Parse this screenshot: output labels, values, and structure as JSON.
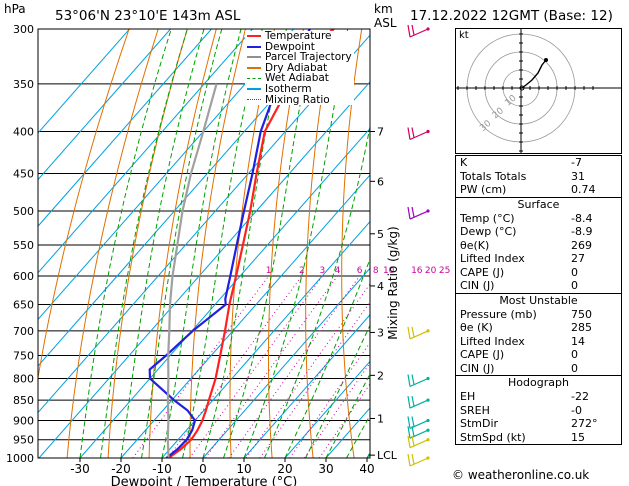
{
  "header": {
    "left_title": "53°06'N  23°10'E  143m  ASL",
    "right_title": "17.12.2022  12GMT  (Base: 12)",
    "hpa_label": "hPa",
    "km_label": "km",
    "asl_label": "ASL"
  },
  "legend": {
    "items": [
      {
        "label": "Temperature",
        "color": "#ff2020"
      },
      {
        "label": "Dewpoint",
        "color": "#2020e0"
      },
      {
        "label": "Parcel Trajectory",
        "color": "#909090"
      },
      {
        "label": "Dry Adiabat",
        "color": "#e07000"
      },
      {
        "label": "Wet Adiabat",
        "color": "#00a000"
      },
      {
        "label": "Isotherm",
        "color": "#00a0e0"
      },
      {
        "label": "Mixing Ratio",
        "color": "#d000a0"
      }
    ]
  },
  "colors": {
    "temperature": "#ff2020",
    "dewpoint": "#2020e0",
    "parcel": "#a0a0a0",
    "dry_adiabat": "#e07000",
    "wet_adiabat": "#00a000",
    "isotherm": "#00a0e0",
    "mixing_ratio": "#d000a0",
    "wind_barb_upper": "#d00060",
    "wind_barb_mid": "#a000c0",
    "wind_barb_low": "#00b0a0",
    "wind_barb_surface": "#d0c000"
  },
  "chart_data": {
    "type": "line",
    "title": "53°06'N  23°10'E  143m  ASL",
    "xlabel": "Dewpoint / Temperature (°C)",
    "ylabel": "hPa",
    "right_ylabel": "Mixing Ratio (g/kg)",
    "xlim": [
      -40,
      40
    ],
    "ylim": [
      1000,
      300
    ],
    "x_ticks": [
      -30,
      -20,
      -10,
      0,
      10,
      20,
      30,
      40
    ],
    "pressure_ticks": [
      300,
      350,
      400,
      450,
      500,
      550,
      600,
      650,
      700,
      750,
      800,
      850,
      900,
      950,
      1000
    ],
    "km_ticks": [
      {
        "label": "7",
        "p": 400
      },
      {
        "label": "6",
        "p": 460
      },
      {
        "label": "5",
        "p": 533
      },
      {
        "label": "4",
        "p": 617
      },
      {
        "label": "3",
        "p": 703
      },
      {
        "label": "2",
        "p": 793
      },
      {
        "label": "1",
        "p": 895
      },
      {
        "label": "LCL",
        "p": 992
      }
    ],
    "mixing_ratio_labels": [
      "1",
      "2",
      "3",
      "4",
      "6",
      "8",
      "10",
      "16",
      "20",
      "25"
    ],
    "mixing_ratio_values": [
      1,
      2,
      3,
      4,
      6,
      8,
      10,
      16,
      20,
      25
    ],
    "grid": true,
    "series": [
      {
        "name": "Temperature",
        "p": [
          1000,
          975,
          950,
          925,
          900,
          875,
          850,
          800,
          750,
          700,
          650,
          600,
          550,
          500,
          450,
          400,
          350,
          300
        ],
        "t": [
          -8.4,
          -7.3,
          -6.8,
          -7.3,
          -8.2,
          -9.5,
          -11,
          -14,
          -17.8,
          -21.9,
          -26.5,
          -31,
          -36,
          -41.5,
          -48,
          -55,
          -59,
          -60.5
        ]
      },
      {
        "name": "Dewpoint",
        "p": [
          1000,
          975,
          950,
          925,
          900,
          875,
          850,
          800,
          780,
          750,
          700,
          650,
          640,
          600,
          550,
          500,
          450,
          400,
          350,
          300
        ],
        "t": [
          -8.9,
          -8.1,
          -7.9,
          -8.6,
          -10,
          -14,
          -19.5,
          -30,
          -32,
          -31,
          -29.8,
          -27.4,
          -28.7,
          -32.4,
          -37.5,
          -43,
          -49,
          -56,
          -62,
          -66
        ]
      },
      {
        "name": "Parcel Trajectory",
        "p": [
          1000,
          950,
          900,
          850,
          800,
          750,
          700,
          650,
          600,
          550,
          500,
          450,
          400,
          350
        ],
        "t": [
          -8.4,
          -12.5,
          -16.5,
          -21,
          -25.5,
          -30.5,
          -35.5,
          -41,
          -46.5,
          -52,
          -58,
          -64,
          -70,
          -77
        ]
      }
    ]
  },
  "hodograph": {
    "label": "kt",
    "ring_labels": [
      "10",
      "20",
      "30"
    ]
  },
  "indices": {
    "top": [
      {
        "label": "K",
        "value": "-7"
      },
      {
        "label": "Totals Totals",
        "value": "31"
      },
      {
        "label": "PW (cm)",
        "value": "0.74"
      }
    ],
    "surface_title": "Surface",
    "surface": [
      {
        "label": "Temp (°C)",
        "value": "-8.4"
      },
      {
        "label": "Dewp (°C)",
        "value": "-8.9"
      },
      {
        "label": "θe(K)",
        "value": "269"
      },
      {
        "label": "Lifted Index",
        "value": "27"
      },
      {
        "label": "CAPE (J)",
        "value": "0"
      },
      {
        "label": "CIN (J)",
        "value": "0"
      }
    ],
    "mu_title": "Most Unstable",
    "most_unstable": [
      {
        "label": "Pressure (mb)",
        "value": "750"
      },
      {
        "label": "θe (K)",
        "value": "285"
      },
      {
        "label": "Lifted Index",
        "value": "14"
      },
      {
        "label": "CAPE (J)",
        "value": "0"
      },
      {
        "label": "CIN (J)",
        "value": "0"
      }
    ],
    "hodo_title": "Hodograph",
    "hodograph": [
      {
        "label": "EH",
        "value": "-22"
      },
      {
        "label": "SREH",
        "value": "-0"
      },
      {
        "label": "StmDir",
        "value": "272°"
      },
      {
        "label": "StmSpd (kt)",
        "value": "15"
      }
    ]
  },
  "footer": {
    "copyright": "© weatheronline.co.uk"
  }
}
